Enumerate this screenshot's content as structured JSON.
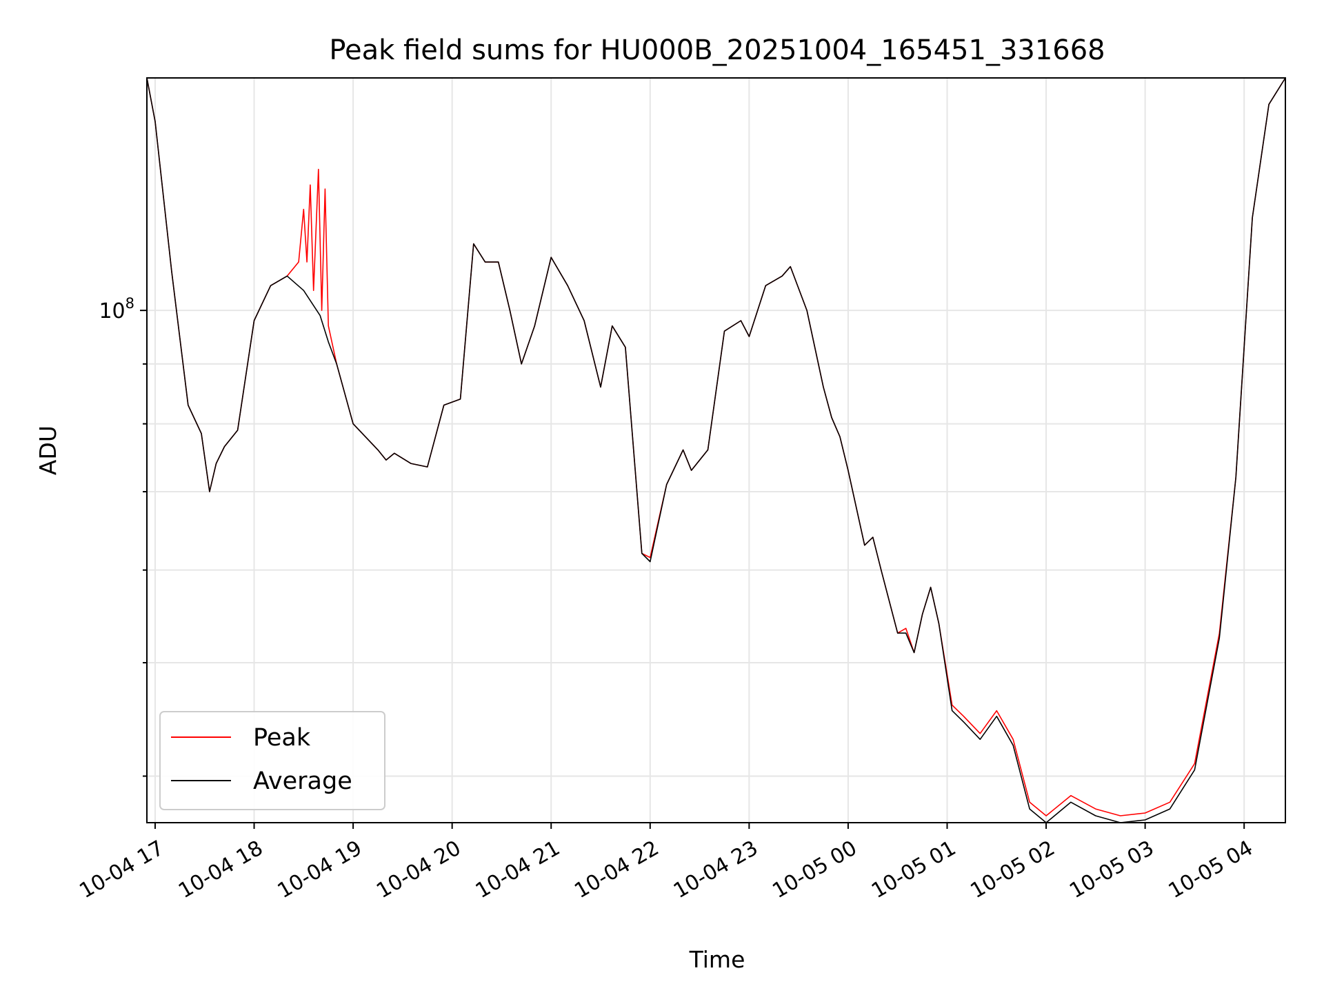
{
  "chart_data": {
    "type": "line",
    "title": "Peak field sums for HU000B_20251004_165451_331668",
    "xlabel": "Time",
    "ylabel": "ADU",
    "y_scale": "log",
    "ylim": [
      36500000.0,
      158000000.0
    ],
    "xlim": [
      "2025-10-04 16:55",
      "2025-10-05 04:25"
    ],
    "grid": true,
    "legend": "lower-left",
    "x_ticks": [
      "10-04 17",
      "10-04 18",
      "10-04 19",
      "10-04 20",
      "10-04 21",
      "10-04 22",
      "10-04 23",
      "10-05 00",
      "10-05 01",
      "10-05 02",
      "10-05 03",
      "10-05 04"
    ],
    "y_tick_labels": [
      {
        "base": "10",
        "exp": "8",
        "value": 100000000.0
      }
    ],
    "y_minor_ticks": [
      40000000.0,
      50000000.0,
      60000000.0,
      70000000.0,
      80000000.0,
      90000000.0,
      200000000.0
    ],
    "series": [
      {
        "name": "Peak",
        "color": "#ff0000",
        "points": [
          [
            "2025-10-04 16:55",
            158000000.0
          ],
          [
            "2025-10-04 17:00",
            145000000.0
          ],
          [
            "2025-10-04 17:10",
            108000000.0
          ],
          [
            "2025-10-04 17:20",
            83000000.0
          ],
          [
            "2025-10-04 17:28",
            78500000.0
          ],
          [
            "2025-10-04 17:33",
            70000000.0
          ],
          [
            "2025-10-04 17:37",
            74000000.0
          ],
          [
            "2025-10-04 17:42",
            76500000.0
          ],
          [
            "2025-10-04 17:50",
            79000000.0
          ],
          [
            "2025-10-04 18:00",
            98000000.0
          ],
          [
            "2025-10-04 18:10",
            105000000.0
          ],
          [
            "2025-10-04 18:20",
            107000000.0
          ],
          [
            "2025-10-04 18:27",
            110000000.0
          ],
          [
            "2025-10-04 18:30",
            122000000.0
          ],
          [
            "2025-10-04 18:32",
            110000000.0
          ],
          [
            "2025-10-04 18:34",
            128000000.0
          ],
          [
            "2025-10-04 18:36",
            104000000.0
          ],
          [
            "2025-10-04 18:39",
            132000000.0
          ],
          [
            "2025-10-04 18:41",
            100000000.0
          ],
          [
            "2025-10-04 18:43",
            127000000.0
          ],
          [
            "2025-10-04 18:45",
            97000000.0
          ],
          [
            "2025-10-04 18:50",
            90000000.0
          ],
          [
            "2025-10-04 19:00",
            80000000.0
          ],
          [
            "2025-10-04 19:15",
            76000000.0
          ],
          [
            "2025-10-04 19:20",
            74500000.0
          ],
          [
            "2025-10-04 19:25",
            75500000.0
          ],
          [
            "2025-10-04 19:35",
            74000000.0
          ],
          [
            "2025-10-04 19:45",
            73500000.0
          ],
          [
            "2025-10-04 19:55",
            83000000.0
          ],
          [
            "2025-10-04 20:05",
            84000000.0
          ],
          [
            "2025-10-04 20:13",
            114000000.0
          ],
          [
            "2025-10-04 20:20",
            110000000.0
          ],
          [
            "2025-10-04 20:28",
            110000000.0
          ],
          [
            "2025-10-04 20:35",
            100000000.0
          ],
          [
            "2025-10-04 20:42",
            90000000.0
          ],
          [
            "2025-10-04 20:50",
            97000000.0
          ],
          [
            "2025-10-04 21:00",
            111000000.0
          ],
          [
            "2025-10-04 21:10",
            105000000.0
          ],
          [
            "2025-10-04 21:20",
            98000000.0
          ],
          [
            "2025-10-04 21:30",
            86000000.0
          ],
          [
            "2025-10-04 21:37",
            97000000.0
          ],
          [
            "2025-10-04 21:45",
            93000000.0
          ],
          [
            "2025-10-04 21:55",
            62000000.0
          ],
          [
            "2025-10-04 22:00",
            61500000.0
          ],
          [
            "2025-10-04 22:10",
            71000000.0
          ],
          [
            "2025-10-04 22:20",
            76000000.0
          ],
          [
            "2025-10-04 22:25",
            73000000.0
          ],
          [
            "2025-10-04 22:35",
            76000000.0
          ],
          [
            "2025-10-04 22:45",
            96000000.0
          ],
          [
            "2025-10-04 22:55",
            98000000.0
          ],
          [
            "2025-10-04 23:00",
            95000000.0
          ],
          [
            "2025-10-04 23:10",
            105000000.0
          ],
          [
            "2025-10-04 23:20",
            107000000.0
          ],
          [
            "2025-10-04 23:25",
            109000000.0
          ],
          [
            "2025-10-04 23:35",
            100000000.0
          ],
          [
            "2025-10-04 23:45",
            86000000.0
          ],
          [
            "2025-10-04 23:50",
            81000000.0
          ],
          [
            "2025-10-04 23:55",
            78000000.0
          ],
          [
            "2025-10-05 00:00",
            73000000.0
          ],
          [
            "2025-10-05 00:10",
            63000000.0
          ],
          [
            "2025-10-05 00:15",
            64000000.0
          ],
          [
            "2025-10-05 00:20",
            60000000.0
          ],
          [
            "2025-10-05 00:30",
            53000000.0
          ],
          [
            "2025-10-05 00:35",
            53500000.0
          ],
          [
            "2025-10-05 00:40",
            51000000.0
          ],
          [
            "2025-10-05 00:45",
            55000000.0
          ],
          [
            "2025-10-05 00:50",
            58000000.0
          ],
          [
            "2025-10-05 00:55",
            54000000.0
          ],
          [
            "2025-10-05 01:03",
            46000000.0
          ],
          [
            "2025-10-05 01:10",
            45000000.0
          ],
          [
            "2025-10-05 01:20",
            43500000.0
          ],
          [
            "2025-10-05 01:30",
            45500000.0
          ],
          [
            "2025-10-05 01:40",
            43000000.0
          ],
          [
            "2025-10-05 01:50",
            38000000.0
          ],
          [
            "2025-10-05 02:00",
            37000000.0
          ],
          [
            "2025-10-05 02:15",
            38500000.0
          ],
          [
            "2025-10-05 02:30",
            37500000.0
          ],
          [
            "2025-10-05 02:45",
            37000000.0
          ],
          [
            "2025-10-05 03:00",
            37200000.0
          ],
          [
            "2025-10-05 03:15",
            38000000.0
          ],
          [
            "2025-10-05 03:30",
            41000000.0
          ],
          [
            "2025-10-05 03:45",
            53000000.0
          ],
          [
            "2025-10-05 03:55",
            72000000.0
          ],
          [
            "2025-10-05 04:05",
            120000000.0
          ],
          [
            "2025-10-05 04:15",
            150000000.0
          ],
          [
            "2025-10-05 04:25",
            158000000.0
          ]
        ]
      },
      {
        "name": "Average",
        "color": "#000000",
        "points": [
          [
            "2025-10-04 16:55",
            158000000.0
          ],
          [
            "2025-10-04 17:00",
            145000000.0
          ],
          [
            "2025-10-04 17:10",
            108000000.0
          ],
          [
            "2025-10-04 17:20",
            83000000.0
          ],
          [
            "2025-10-04 17:28",
            78500000.0
          ],
          [
            "2025-10-04 17:33",
            70000000.0
          ],
          [
            "2025-10-04 17:37",
            74000000.0
          ],
          [
            "2025-10-04 17:42",
            76500000.0
          ],
          [
            "2025-10-04 17:50",
            79000000.0
          ],
          [
            "2025-10-04 18:00",
            98000000.0
          ],
          [
            "2025-10-04 18:10",
            105000000.0
          ],
          [
            "2025-10-04 18:20",
            107000000.0
          ],
          [
            "2025-10-04 18:30",
            104000000.0
          ],
          [
            "2025-10-04 18:40",
            99000000.0
          ],
          [
            "2025-10-04 18:45",
            94000000.0
          ],
          [
            "2025-10-04 18:50",
            90000000.0
          ],
          [
            "2025-10-04 19:00",
            80000000.0
          ],
          [
            "2025-10-04 19:15",
            76000000.0
          ],
          [
            "2025-10-04 19:20",
            74500000.0
          ],
          [
            "2025-10-04 19:25",
            75500000.0
          ],
          [
            "2025-10-04 19:35",
            74000000.0
          ],
          [
            "2025-10-04 19:45",
            73500000.0
          ],
          [
            "2025-10-04 19:55",
            83000000.0
          ],
          [
            "2025-10-04 20:05",
            84000000.0
          ],
          [
            "2025-10-04 20:13",
            114000000.0
          ],
          [
            "2025-10-04 20:20",
            110000000.0
          ],
          [
            "2025-10-04 20:28",
            110000000.0
          ],
          [
            "2025-10-04 20:35",
            100000000.0
          ],
          [
            "2025-10-04 20:42",
            90000000.0
          ],
          [
            "2025-10-04 20:50",
            97000000.0
          ],
          [
            "2025-10-04 21:00",
            111000000.0
          ],
          [
            "2025-10-04 21:10",
            105000000.0
          ],
          [
            "2025-10-04 21:20",
            98000000.0
          ],
          [
            "2025-10-04 21:30",
            86000000.0
          ],
          [
            "2025-10-04 21:37",
            97000000.0
          ],
          [
            "2025-10-04 21:45",
            93000000.0
          ],
          [
            "2025-10-04 21:55",
            62000000.0
          ],
          [
            "2025-10-04 22:00",
            61000000.0
          ],
          [
            "2025-10-04 22:10",
            71000000.0
          ],
          [
            "2025-10-04 22:20",
            76000000.0
          ],
          [
            "2025-10-04 22:25",
            73000000.0
          ],
          [
            "2025-10-04 22:35",
            76000000.0
          ],
          [
            "2025-10-04 22:45",
            96000000.0
          ],
          [
            "2025-10-04 22:55",
            98000000.0
          ],
          [
            "2025-10-04 23:00",
            95000000.0
          ],
          [
            "2025-10-04 23:10",
            105000000.0
          ],
          [
            "2025-10-04 23:20",
            107000000.0
          ],
          [
            "2025-10-04 23:25",
            109000000.0
          ],
          [
            "2025-10-04 23:35",
            100000000.0
          ],
          [
            "2025-10-04 23:45",
            86000000.0
          ],
          [
            "2025-10-04 23:50",
            81000000.0
          ],
          [
            "2025-10-04 23:55",
            78000000.0
          ],
          [
            "2025-10-05 00:00",
            73000000.0
          ],
          [
            "2025-10-05 00:10",
            63000000.0
          ],
          [
            "2025-10-05 00:15",
            64000000.0
          ],
          [
            "2025-10-05 00:20",
            60000000.0
          ],
          [
            "2025-10-05 00:30",
            53000000.0
          ],
          [
            "2025-10-05 00:35",
            53000000.0
          ],
          [
            "2025-10-05 00:40",
            51000000.0
          ],
          [
            "2025-10-05 00:45",
            55000000.0
          ],
          [
            "2025-10-05 00:50",
            58000000.0
          ],
          [
            "2025-10-05 00:55",
            54000000.0
          ],
          [
            "2025-10-05 01:03",
            45500000.0
          ],
          [
            "2025-10-05 01:10",
            44500000.0
          ],
          [
            "2025-10-05 01:20",
            43000000.0
          ],
          [
            "2025-10-05 01:30",
            45000000.0
          ],
          [
            "2025-10-05 01:40",
            42500000.0
          ],
          [
            "2025-10-05 01:50",
            37500000.0
          ],
          [
            "2025-10-05 02:00",
            36500000.0
          ],
          [
            "2025-10-05 02:15",
            38000000.0
          ],
          [
            "2025-10-05 02:30",
            37000000.0
          ],
          [
            "2025-10-05 02:45",
            36500000.0
          ],
          [
            "2025-10-05 03:00",
            36700000.0
          ],
          [
            "2025-10-05 03:15",
            37500000.0
          ],
          [
            "2025-10-05 03:30",
            40500000.0
          ],
          [
            "2025-10-05 03:45",
            52500000.0
          ],
          [
            "2025-10-05 03:55",
            72000000.0
          ],
          [
            "2025-10-05 04:05",
            120000000.0
          ],
          [
            "2025-10-05 04:15",
            150000000.0
          ],
          [
            "2025-10-05 04:25",
            158000000.0
          ]
        ]
      }
    ]
  }
}
